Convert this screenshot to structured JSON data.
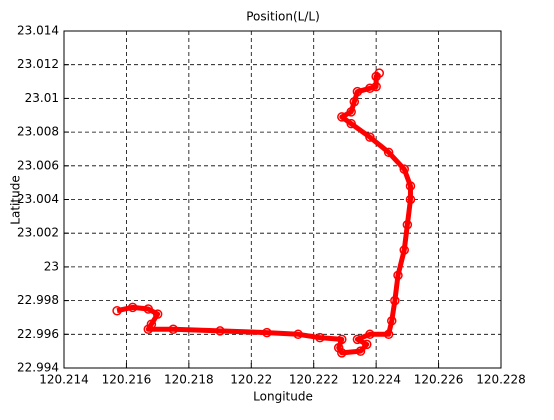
{
  "chart_data": {
    "type": "line",
    "title": "Position(L/L)",
    "x_label": "Longitude",
    "y_label": "Latitude",
    "xlim": [
      120.214,
      120.228
    ],
    "xticks": [
      120.214,
      120.216,
      120.218,
      120.22,
      120.222,
      120.224,
      120.226,
      120.228
    ],
    "ylim": [
      22.994,
      23.014
    ],
    "yticks": [
      22.994,
      22.996,
      22.998,
      23,
      23.002,
      23.004,
      23.006,
      23.008,
      23.01,
      23.012,
      23.014
    ],
    "grid": true,
    "series": [
      {
        "color": "#ff0000",
        "x": [
          120.2157,
          120.2162,
          120.2167,
          120.217,
          120.2168,
          120.2167,
          120.2175,
          120.219,
          120.2205,
          120.2215,
          120.2222,
          120.2229,
          120.2228,
          120.2229,
          120.2235,
          120.2237,
          120.2234,
          120.2238,
          120.2244,
          120.2245,
          120.2246,
          120.2247,
          120.2249,
          120.225,
          120.2251,
          120.2251,
          120.2249,
          120.2244,
          120.2238,
          120.2232,
          120.2229,
          120.2232,
          120.2233,
          120.2234,
          120.2238,
          120.224,
          120.224,
          120.2241
        ],
        "values": [
          22.9974,
          22.9976,
          22.9975,
          22.9972,
          22.9966,
          22.9963,
          22.9963,
          22.9962,
          22.9961,
          22.996,
          22.9958,
          22.9957,
          22.9952,
          22.9949,
          22.995,
          22.9954,
          22.9957,
          22.996,
          22.996,
          22.9968,
          22.998,
          22.9995,
          23.001,
          23.0025,
          23.004,
          23.0048,
          23.0058,
          23.0068,
          23.0077,
          23.0085,
          23.0089,
          23.0092,
          23.0098,
          23.0104,
          23.0106,
          23.0107,
          23.0113,
          23.0115
        ]
      }
    ]
  }
}
